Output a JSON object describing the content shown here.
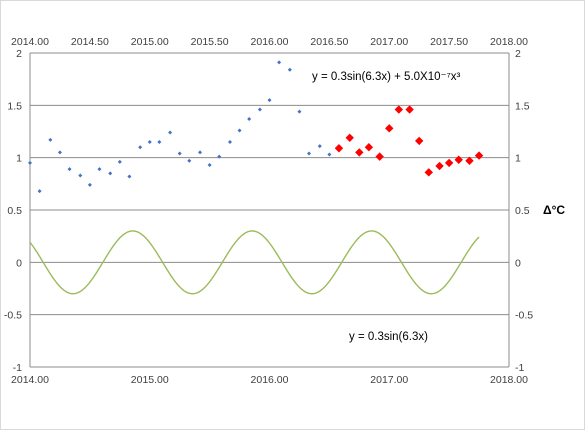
{
  "chart_data": {
    "type": "scatter",
    "title": "",
    "xlabel": "",
    "ylabel": "",
    "y2label": "Δ°C",
    "xlim": [
      2014.0,
      2018.0
    ],
    "ylim": [
      -1,
      2
    ],
    "grid": true,
    "legend": "none",
    "x_ticks_top": [
      "2014.00",
      "2014.50",
      "2015.00",
      "2015.50",
      "2016.00",
      "2016.50",
      "2017.00",
      "2017.50",
      "2018.00"
    ],
    "x_ticks_bottom": [
      "2014.00",
      "2015.00",
      "2016.00",
      "2017.00",
      "2018.00"
    ],
    "y_ticks": [
      "2",
      "1.5",
      "1",
      "0.5",
      "0",
      "-0.5",
      "-1"
    ],
    "y2_ticks": [
      "2",
      "1.5",
      "1",
      "0.5",
      "0",
      "-0.5",
      "-1"
    ],
    "annotations": {
      "upper_equation": "y = 0.3sin(6.3x) + 5.0X10⁻⁷x³",
      "lower_equation": "y = 0.3sin(6.3x)"
    },
    "series": [
      {
        "marker": "small-diamond",
        "color": "#4472c4",
        "x": [
          2014.0,
          2014.08,
          2014.17,
          2014.25,
          2014.33,
          2014.42,
          2014.5,
          2014.58,
          2014.67,
          2014.75,
          2014.83,
          2014.92,
          2015.0,
          2015.08,
          2015.17,
          2015.25,
          2015.33,
          2015.42,
          2015.5,
          2015.58,
          2015.67,
          2015.75,
          2015.83,
          2015.92,
          2016.0,
          2016.08,
          2016.17,
          2016.25,
          2016.33,
          2016.42,
          2016.5
        ],
        "y": [
          0.95,
          0.68,
          1.17,
          1.05,
          0.89,
          0.83,
          0.74,
          0.89,
          0.85,
          0.96,
          0.82,
          1.1,
          1.15,
          1.15,
          1.24,
          1.04,
          0.97,
          1.05,
          0.93,
          1.01,
          1.15,
          1.26,
          1.37,
          1.46,
          1.55,
          1.91,
          1.84,
          1.44,
          1.04,
          1.11,
          1.03
        ]
      },
      {
        "marker": "large-diamond",
        "color": "#ff0000",
        "x": [
          2016.58,
          2016.67,
          2016.75,
          2016.83,
          2016.92,
          2017.0,
          2017.08,
          2017.17,
          2017.25,
          2017.33,
          2017.42,
          2017.5,
          2017.58,
          2017.67,
          2017.75
        ],
        "y": [
          1.09,
          1.19,
          1.05,
          1.1,
          1.01,
          1.28,
          1.46,
          1.46,
          1.16,
          0.86,
          0.92,
          0.95,
          0.98,
          0.97,
          1.02
        ]
      },
      {
        "type": "line",
        "color": "#c0504d",
        "formula": "0.3*sin(6.3*x) + 5.0e-7*x^3",
        "x_range": [
          2014.0,
          2017.75
        ]
      },
      {
        "type": "line",
        "color": "#9bbb59",
        "formula": "0.3*sin(6.3*x)",
        "x_range": [
          2014.0,
          2017.75
        ]
      }
    ]
  }
}
